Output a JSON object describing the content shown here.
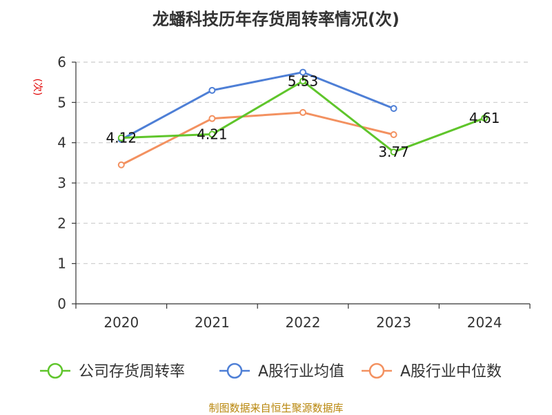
{
  "title": "龙蟠科技历年存货周转率情况(次)",
  "source": "制图数据来自恒生聚源数据库",
  "chart_data": {
    "type": "line",
    "title": "龙蟠科技历年存货周转率情况(次)",
    "xlabel": "",
    "ylabel": "(次)",
    "x": [
      "2020",
      "2021",
      "2022",
      "2023",
      "2024"
    ],
    "ylim": [
      0,
      6
    ],
    "yticks": [
      "0",
      "1",
      "2",
      "3",
      "4",
      "5",
      "6"
    ],
    "grid": true,
    "legend_position": "bottom",
    "series": [
      {
        "name": "公司存货周转率",
        "values": [
          4.12,
          4.21,
          5.53,
          3.77,
          4.61
        ],
        "labels": [
          "4.12",
          "4.21",
          "5.53",
          "3.77",
          "4.61"
        ],
        "color": "#5fc52b"
      },
      {
        "name": "A股行业均值",
        "values": [
          4.08,
          5.3,
          5.75,
          4.85,
          null
        ],
        "color": "#4e7fd6"
      },
      {
        "name": "A股行业中位数",
        "values": [
          3.45,
          4.6,
          4.75,
          4.2,
          null
        ],
        "color": "#f39160"
      }
    ]
  }
}
